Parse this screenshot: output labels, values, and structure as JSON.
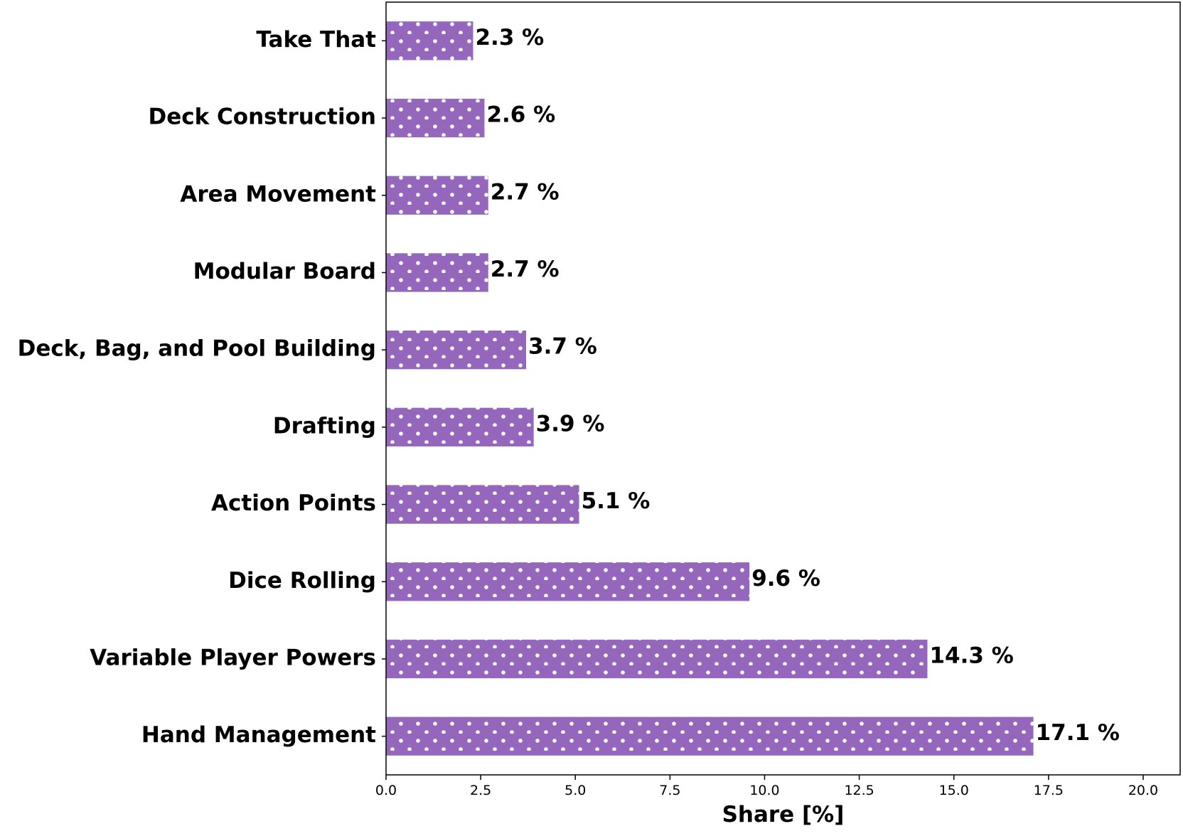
{
  "chart_data": {
    "type": "bar",
    "orientation": "horizontal",
    "categories": [
      "Hand Management",
      "Variable Player Powers",
      "Dice Rolling",
      "Action Points",
      "Drafting",
      "Deck, Bag, and Pool Building",
      "Modular Board",
      "Area Movement",
      "Deck Construction",
      "Take That"
    ],
    "values": [
      17.1,
      14.3,
      9.6,
      5.1,
      3.9,
      3.7,
      2.7,
      2.7,
      2.6,
      2.3
    ],
    "value_labels": [
      "17.1 %",
      "14.3 %",
      "9.6 %",
      "5.1 %",
      "3.9 %",
      "3.7 %",
      "2.7 %",
      "2.7 %",
      "2.6 %",
      "2.3 %"
    ],
    "title": "",
    "xlabel": "Share [%]",
    "ylabel": "",
    "xlim": [
      0,
      21
    ],
    "xticks": [
      0.0,
      2.5,
      5.0,
      7.5,
      10.0,
      12.5,
      15.0,
      17.5,
      20.0
    ],
    "xtick_labels": [
      "0.0",
      "2.5",
      "5.0",
      "7.5",
      "10.0",
      "12.5",
      "15.0",
      "17.5",
      "20.0"
    ],
    "grid": false,
    "bar_color": "#9467bd",
    "bar_pattern": "white dots"
  }
}
